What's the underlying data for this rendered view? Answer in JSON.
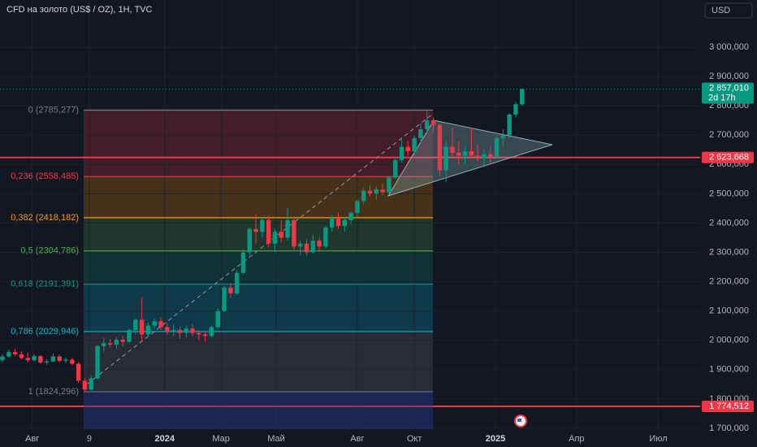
{
  "chart_data": {
    "type": "candlestick",
    "title": "CFD на золото (US$ / OZ), 1H, TVC",
    "currency": "USD",
    "up_color": "#089981",
    "down_color": "#f23645",
    "grid": true,
    "open": [
      1932,
      1945,
      1960,
      1952,
      1940,
      1932,
      1946,
      1924,
      1928,
      1945,
      1930,
      1934,
      1920,
      1862,
      1832,
      1870,
      1980,
      1990,
      1985,
      2002,
      1995,
      2035,
      2070,
      2020,
      2050,
      2065,
      2045,
      2030,
      2035,
      2025,
      2040,
      2025,
      2020,
      2015,
      2045,
      2100,
      2180,
      2160,
      2230,
      2300,
      2380,
      2370,
      2410,
      2330,
      2370,
      2350,
      2410,
      2320,
      2330,
      2300,
      2340,
      2320,
      2385,
      2415,
      2390,
      2410,
      2435,
      2475,
      2510,
      2500,
      2515,
      2505,
      2555,
      2615,
      2660,
      2645,
      2690,
      2720,
      2750,
      2735,
      2580,
      2660,
      2640,
      2630,
      2645,
      2630,
      2620,
      2635,
      2625,
      2690,
      2700,
      2770,
      2805
    ],
    "high": [
      1952,
      1968,
      1972,
      1962,
      1958,
      1952,
      1950,
      1935,
      1955,
      1952,
      1942,
      1940,
      1925,
      1870,
      1880,
      1985,
      2010,
      2005,
      2010,
      2015,
      2040,
      2075,
      2146,
      2060,
      2075,
      2078,
      2060,
      2055,
      2045,
      2050,
      2055,
      2035,
      2030,
      2050,
      2110,
      2185,
      2195,
      2240,
      2310,
      2385,
      2431,
      2420,
      2425,
      2380,
      2410,
      2450,
      2420,
      2340,
      2345,
      2360,
      2350,
      2390,
      2425,
      2435,
      2420,
      2440,
      2480,
      2520,
      2530,
      2525,
      2535,
      2560,
      2625,
      2685,
      2680,
      2700,
      2740,
      2785.277,
      2760,
      2740,
      2680,
      2725,
      2680,
      2660,
      2725,
      2670,
      2650,
      2660,
      2695,
      2720,
      2775,
      2815,
      2860
    ],
    "low": [
      1925,
      1940,
      1948,
      1935,
      1925,
      1928,
      1920,
      1915,
      1925,
      1925,
      1922,
      1915,
      1855,
      1824.296,
      1828,
      1865,
      1960,
      1975,
      1970,
      1980,
      1990,
      2020,
      2000,
      2015,
      2040,
      2035,
      2020,
      2015,
      2005,
      2010,
      2015,
      2000,
      1995,
      2010,
      2040,
      2095,
      2145,
      2155,
      2225,
      2290,
      2330,
      2350,
      2320,
      2300,
      2335,
      2340,
      2310,
      2290,
      2290,
      2295,
      2300,
      2315,
      2370,
      2380,
      2370,
      2395,
      2420,
      2465,
      2490,
      2480,
      2495,
      2500,
      2550,
      2605,
      2630,
      2630,
      2670,
      2700,
      2710,
      2560,
      2540,
      2620,
      2600,
      2600,
      2620,
      2610,
      2590,
      2600,
      2620,
      2660,
      2690,
      2760,
      2800
    ],
    "close": [
      1945,
      1960,
      1952,
      1940,
      1932,
      1946,
      1924,
      1928,
      1945,
      1930,
      1934,
      1920,
      1862,
      1832,
      1870,
      1980,
      1990,
      1985,
      2002,
      1995,
      2035,
      2070,
      2020,
      2050,
      2065,
      2045,
      2030,
      2035,
      2025,
      2040,
      2025,
      2020,
      2015,
      2045,
      2100,
      2180,
      2160,
      2230,
      2300,
      2380,
      2370,
      2410,
      2330,
      2370,
      2350,
      2410,
      2320,
      2330,
      2300,
      2340,
      2320,
      2385,
      2415,
      2390,
      2410,
      2435,
      2475,
      2510,
      2500,
      2515,
      2505,
      2555,
      2615,
      2660,
      2645,
      2690,
      2720,
      2750,
      2735,
      2580,
      2660,
      2640,
      2630,
      2645,
      2630,
      2620,
      2635,
      2625,
      2690,
      2700,
      2770,
      2805,
      2857.01
    ],
    "xlim": [
      -0.385,
      110.1
    ],
    "xticks": [
      {
        "value": 4.7,
        "label": "Авг"
      },
      {
        "value": 13.7,
        "label": "9"
      },
      {
        "value": 25.6,
        "label": "2024"
      },
      {
        "value": 34.5,
        "label": "Мар"
      },
      {
        "value": 43.2,
        "label": "Май"
      },
      {
        "value": 56.0,
        "label": "Авг"
      },
      {
        "value": 65.0,
        "label": "Окт"
      },
      {
        "value": 77.8,
        "label": "2025"
      },
      {
        "value": 90.6,
        "label": "Апр"
      },
      {
        "value": 103.5,
        "label": "Июл"
      }
    ],
    "ylim": [
      1697,
      3161
    ],
    "yticks": [
      {
        "value": 1700,
        "label": "1 700,000"
      },
      {
        "value": 1800,
        "label": "1 800,000"
      },
      {
        "value": 1900,
        "label": "1 900,000"
      },
      {
        "value": 2000,
        "label": "2 000,000"
      },
      {
        "value": 2100,
        "label": "2 100,000"
      },
      {
        "value": 2200,
        "label": "2 200,000"
      },
      {
        "value": 2300,
        "label": "2 300,000"
      },
      {
        "value": 2400,
        "label": "2 400,000"
      },
      {
        "value": 2500,
        "label": "2 500,000"
      },
      {
        "value": 2600,
        "label": "2 600,000"
      },
      {
        "value": 2700,
        "label": "2 700,000"
      },
      {
        "value": 2800,
        "label": "2 800,000"
      },
      {
        "value": 2900,
        "label": "2 900,000"
      },
      {
        "value": 3000,
        "label": "3 000,000"
      }
    ],
    "fib_levels": [
      {
        "label": "0 (2785,277)",
        "price": 2785.277,
        "color": "#787b86"
      },
      {
        "label": "0,236 (2558,485)",
        "price": 2558.485,
        "color": "#f23645"
      },
      {
        "label": "0,382 (2418,182)",
        "price": 2418.182,
        "color": "#ff9800"
      },
      {
        "label": "0,5 (2304,786)",
        "price": 2304.786,
        "color": "#4caf50"
      },
      {
        "label": "0,618 (2191,391)",
        "price": 2191.391,
        "color": "#089981"
      },
      {
        "label": "0,786 (2029,946)",
        "price": 2029.946,
        "color": "#00bcd4"
      },
      {
        "label": "1 (1824,296)",
        "price": 1824.296,
        "color": "#787b86"
      }
    ],
    "price_lines": [
      {
        "value": 2623.668,
        "label": "2 623,668",
        "color": "#f23645"
      },
      {
        "value": 1774.512,
        "label": "1 774,512",
        "color": "#f23645"
      }
    ],
    "last_price": {
      "value": 2857.01,
      "label": "2 857,010",
      "countdown": "2d 17h",
      "color": "#089981"
    }
  }
}
